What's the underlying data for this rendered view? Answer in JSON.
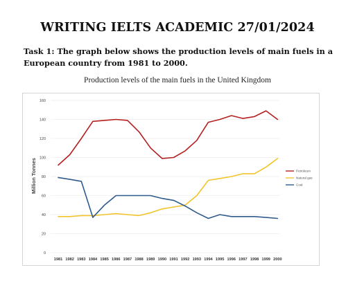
{
  "heading": "WRITING IELTS ACADEMIC 27/01/2024",
  "task_text": "Task 1: The graph below shows the production levels of main fuels in a European country from 1981 to 2000.",
  "chart_data": {
    "type": "line",
    "title": "Production levels of the main fuels in the United Kingdom",
    "xlabel": "",
    "ylabel": "Million Tonnes",
    "ylim": [
      0,
      160
    ],
    "yticks": [
      0,
      20,
      40,
      60,
      80,
      100,
      120,
      140,
      160
    ],
    "grid": true,
    "legend_position": "right",
    "x": [
      "1981",
      "1982",
      "1983",
      "1984",
      "1985",
      "1986",
      "1987",
      "1988",
      "1989",
      "1990",
      "1991",
      "1992",
      "1993",
      "1994",
      "1995",
      "1996",
      "1997",
      "1998",
      "1999",
      "2000"
    ],
    "series": [
      {
        "name": "Petroleum",
        "color": "#b51f1f",
        "values": [
          92,
          103,
          120,
          138,
          139,
          140,
          139,
          127,
          110,
          99,
          100,
          107,
          118,
          137,
          140,
          144,
          141,
          143,
          149,
          140
        ]
      },
      {
        "name": "Natural gas",
        "color": "#f2c42a",
        "values": [
          38,
          38,
          39,
          39,
          40,
          41,
          40,
          39,
          42,
          46,
          48,
          50,
          60,
          76,
          78,
          80,
          83,
          83,
          90,
          99
        ]
      },
      {
        "name": "Coal",
        "color": "#2e5a8c",
        "values": [
          79,
          77,
          75,
          37,
          50,
          60,
          60,
          60,
          60,
          57,
          55,
          49,
          42,
          36,
          40,
          38,
          38,
          38,
          37,
          36
        ]
      }
    ]
  }
}
